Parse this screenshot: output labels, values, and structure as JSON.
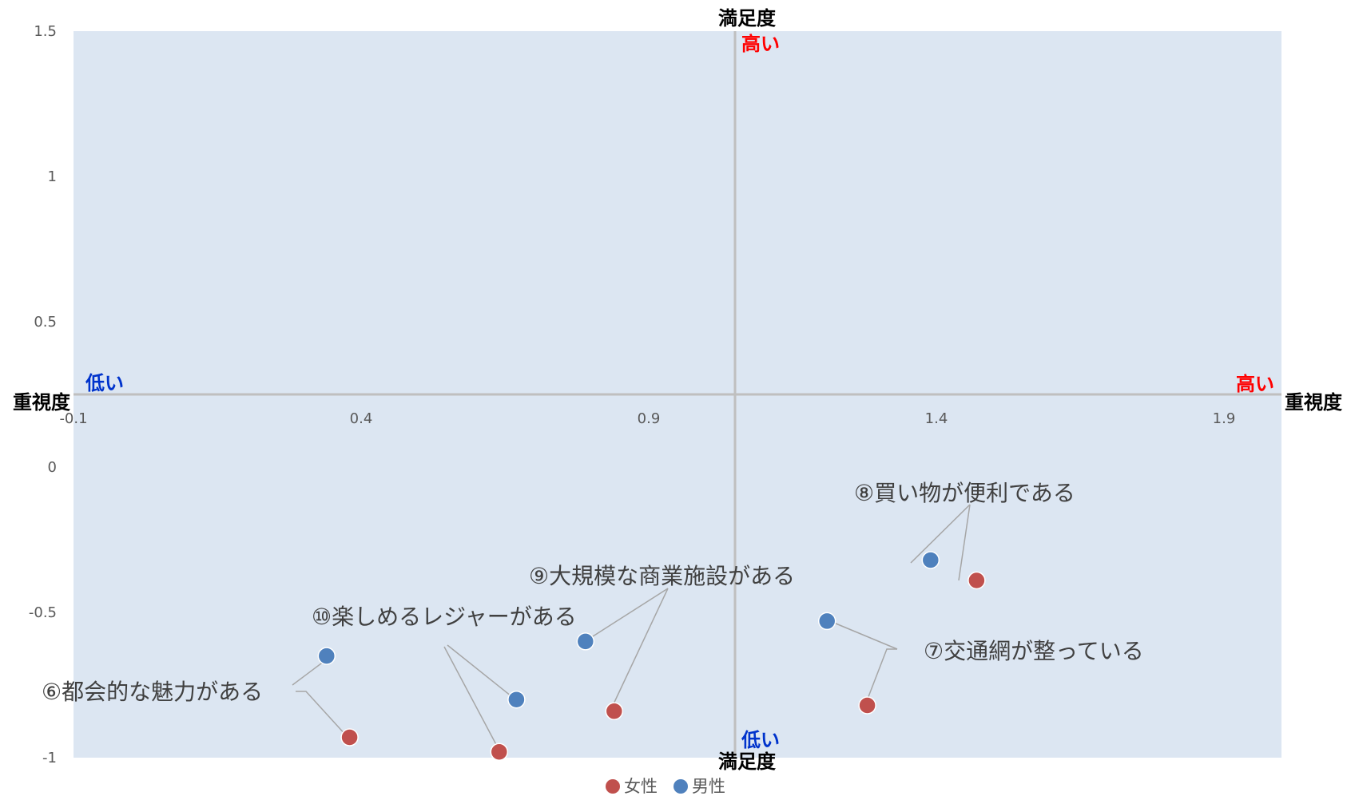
{
  "chart_data": {
    "type": "scatter",
    "x_axis": {
      "title": "重視度",
      "high_label": "高い",
      "low_label": "低い",
      "range": [
        -0.1,
        2.0
      ],
      "ticks": [
        "-0.1",
        "0.4",
        "0.9",
        "1.4",
        "1.9"
      ],
      "crossing": 1.05
    },
    "y_axis": {
      "title": "満足度",
      "high_label": "高い",
      "low_label": "低い",
      "range": [
        -1,
        1.5
      ],
      "ticks": [
        "1.5",
        "1",
        "0.5",
        "0",
        "-0.5",
        "-1"
      ],
      "crossing": 0.25
    },
    "series": [
      {
        "name": "女性",
        "color": "#c0504d",
        "points": [
          {
            "item": "⑥都会的な魅力がある",
            "x": 0.38,
            "y": -0.93
          },
          {
            "item": "⑩楽しめるレジャーがある",
            "x": 0.64,
            "y": -0.98
          },
          {
            "item": "⑨大規模な商業施設がある",
            "x": 0.84,
            "y": -0.84
          },
          {
            "item": "⑦交通網が整っている",
            "x": 1.28,
            "y": -0.82
          },
          {
            "item": "⑧買い物が便利である",
            "x": 1.47,
            "y": -0.39
          }
        ]
      },
      {
        "name": "男性",
        "color": "#4f81bd",
        "points": [
          {
            "item": "⑥都会的な魅力がある",
            "x": 0.34,
            "y": -0.65
          },
          {
            "item": "⑩楽しめるレジャーがある",
            "x": 0.67,
            "y": -0.8
          },
          {
            "item": "⑨大規模な商業施設がある",
            "x": 0.79,
            "y": -0.6
          },
          {
            "item": "⑦交通網が整っている",
            "x": 1.21,
            "y": -0.53
          },
          {
            "item": "⑧買い物が便利である",
            "x": 1.39,
            "y": -0.32
          }
        ]
      }
    ],
    "annotations": [
      {
        "text": "⑥都会的な魅力がある"
      },
      {
        "text": "⑩楽しめるレジャーがある"
      },
      {
        "text": "⑨大規模な商業施設がある"
      },
      {
        "text": "⑦交通網が整っている"
      },
      {
        "text": "⑧買い物が便利である"
      }
    ],
    "plot_background": "#dce6f2",
    "axis_color": "#bfbfbf",
    "leader_color": "#a6a6a6",
    "legend": {
      "position": "bottom",
      "entries": [
        "女性",
        "男性"
      ]
    },
    "grid": false
  }
}
